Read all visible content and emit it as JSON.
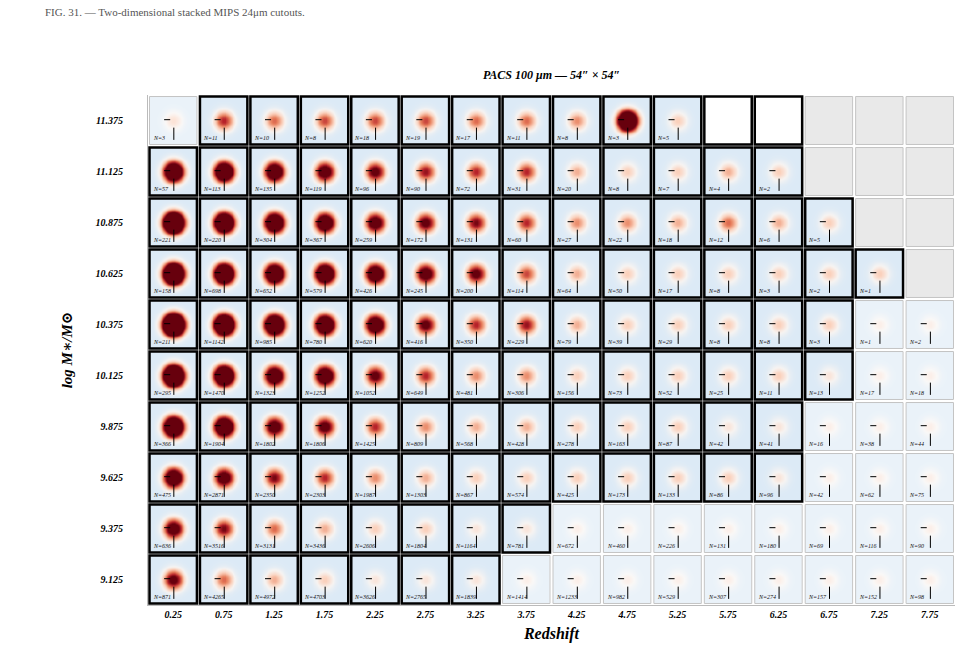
{
  "chart_data": {
    "type": "heatmap_grid",
    "title": "PACS 100 μm — 54″ × 54″",
    "caption": "FIG. 31. — Two-dimensional stacked MIPS 24μm cutouts.",
    "x_label": "Redshift",
    "y_label": "log M∗/M⊙",
    "xlim": [
      0,
      8
    ],
    "ylim": [
      9,
      11.5
    ],
    "xticks": [
      0.25,
      0.75,
      1.25,
      1.75,
      2.25,
      2.75,
      3.25,
      3.75,
      4.25,
      4.75,
      5.25,
      5.75,
      6.25,
      6.75,
      7.25,
      7.75
    ],
    "yticks": [
      9.125,
      9.375,
      9.625,
      9.875,
      10.125,
      10.375,
      10.625,
      10.875,
      11.125,
      11.375
    ],
    "color_range": [
      -0.6,
      1
    ],
    "rows": [
      {
        "mass": 11.375,
        "n": [
          3,
          11,
          10,
          8,
          18,
          19,
          17,
          11,
          8,
          3,
          5,
          null,
          null,
          null,
          null,
          null
        ],
        "value_labels": [
          "N=3",
          "N=11",
          "N=10",
          "N=8",
          "N=18",
          "N=19",
          "N=17",
          "N=11",
          "N=8",
          "N=3",
          "N=5",
          null,
          null,
          null,
          null,
          null
        ],
        "outlined": [
          false,
          true,
          true,
          true,
          true,
          true,
          true,
          true,
          true,
          true,
          true,
          true,
          true,
          false,
          false,
          false
        ],
        "peak": [
          0.3,
          0.8,
          0.6,
          0.7,
          0.7,
          0.7,
          0.6,
          0.6,
          0.5,
          3,
          0.3,
          null,
          null,
          null,
          null,
          null
        ]
      },
      {
        "mass": 11.125,
        "n": [
          57,
          113,
          135,
          119,
          96,
          90,
          72,
          31,
          20,
          8,
          7,
          4,
          2,
          null,
          null,
          null
        ],
        "value_labels": [
          "N=57",
          "N=113",
          "N=135",
          "N=119",
          "N=96",
          "N=90",
          "N=72",
          "N=31",
          "N=20",
          "N=8",
          "N=7",
          "N=4",
          "N=2",
          null,
          null,
          null
        ],
        "outlined": [
          true,
          true,
          true,
          true,
          true,
          true,
          true,
          true,
          true,
          true,
          true,
          true,
          true,
          false,
          false,
          false
        ],
        "peak": [
          2.5,
          2.5,
          2,
          1.5,
          1.2,
          0.9,
          0.8,
          0.8,
          0.4,
          0.3,
          0.3,
          0.4,
          0.3,
          null,
          null,
          null
        ]
      },
      {
        "mass": 10.875,
        "n": [
          221,
          220,
          304,
          367,
          259,
          172,
          131,
          60,
          27,
          22,
          18,
          12,
          6,
          5,
          null,
          null
        ],
        "value_labels": [
          "N=221",
          "N=220",
          "N=304",
          "N=367",
          "N=259",
          "N=172",
          "N=131",
          "N=60",
          "N=27",
          "N=22",
          "N=18",
          "N=12",
          "N=6",
          "N=5",
          null,
          null
        ],
        "outlined": [
          true,
          true,
          true,
          true,
          true,
          true,
          true,
          true,
          true,
          true,
          true,
          true,
          true,
          true,
          false,
          false
        ],
        "peak": [
          4,
          3,
          2.5,
          2,
          1.5,
          1.2,
          1,
          0.8,
          0.5,
          0.5,
          0.4,
          0.6,
          0.4,
          0.3,
          null,
          null
        ]
      },
      {
        "mass": 10.625,
        "n": [
          158,
          698,
          652,
          579,
          426,
          245,
          200,
          114,
          64,
          50,
          17,
          8,
          3,
          2,
          1,
          null
        ],
        "value_labels": [
          "N=158",
          "N=698",
          "N=652",
          "N=579",
          "N=426",
          "N=245",
          "N=200",
          "N=114",
          "N=64",
          "N=50",
          "N=17",
          "N=8",
          "N=3",
          "N=2",
          "N=1",
          null
        ],
        "outlined": [
          true,
          true,
          true,
          true,
          true,
          true,
          true,
          true,
          true,
          true,
          true,
          true,
          true,
          true,
          true,
          false
        ],
        "peak": [
          4,
          3,
          2.5,
          2.5,
          2,
          1.5,
          1.2,
          0.7,
          0.4,
          0.3,
          0.3,
          0.3,
          0.3,
          0.3,
          0.3,
          null
        ]
      },
      {
        "mass": 10.375,
        "n": [
          211,
          1142,
          985,
          780,
          620,
          416,
          350,
          229,
          79,
          39,
          29,
          8,
          8,
          3,
          1,
          2
        ],
        "value_labels": [
          "N=211",
          "N=1142",
          "N=985",
          "N=780",
          "N=620",
          "N=416",
          "N=350",
          "N=229",
          "N=79",
          "N=39",
          "N=29",
          "N=8",
          "N=8",
          "N=3",
          "N=1",
          "N=2"
        ],
        "outlined": [
          true,
          true,
          true,
          true,
          true,
          true,
          true,
          true,
          true,
          true,
          true,
          true,
          true,
          true,
          false,
          false
        ],
        "peak": [
          5,
          3.5,
          3,
          2.5,
          2,
          1.2,
          0.8,
          0.9,
          0.4,
          0.3,
          0.3,
          0.3,
          0.3,
          0.3,
          0.2,
          0.2
        ]
      },
      {
        "mass": 10.125,
        "n": [
          295,
          1470,
          1323,
          1252,
          1052,
          649,
          481,
          306,
          156,
          73,
          52,
          25,
          11,
          13,
          17,
          18
        ],
        "value_labels": [
          "N=295",
          "N=1470",
          "N=1323",
          "N=1252",
          "N=1052",
          "N=649",
          "N=481",
          "N=306",
          "N=156",
          "N=73",
          "N=52",
          "N=25",
          "N=11",
          "N=13",
          "N=17",
          "N=18"
        ],
        "outlined": [
          true,
          true,
          true,
          true,
          true,
          true,
          true,
          true,
          true,
          true,
          true,
          true,
          true,
          true,
          false,
          false
        ],
        "peak": [
          4,
          3,
          2,
          2,
          1.2,
          0.8,
          0.5,
          0.5,
          0.3,
          0.3,
          0.3,
          0.3,
          0.3,
          0.2,
          0.2,
          0.2
        ]
      },
      {
        "mass": 9.875,
        "n": [
          366,
          1904,
          1802,
          1806,
          1425,
          809,
          568,
          428,
          278,
          163,
          87,
          42,
          41,
          16,
          38,
          44
        ],
        "value_labels": [
          "N=366",
          "N=1904",
          "N=1802",
          "N=1806",
          "N=1425",
          "N=809",
          "N=568",
          "N=428",
          "N=278",
          "N=163",
          "N=87",
          "N=42",
          "N=41",
          "N=16",
          "N=38",
          "N=44"
        ],
        "outlined": [
          true,
          true,
          true,
          true,
          true,
          true,
          true,
          true,
          true,
          true,
          true,
          true,
          true,
          false,
          false,
          false
        ],
        "peak": [
          3,
          2.5,
          1.5,
          1.3,
          0.8,
          0.5,
          0.4,
          0.4,
          0.3,
          0.3,
          0.3,
          0.2,
          0.2,
          0.2,
          0.2,
          0.2
        ]
      },
      {
        "mass": 9.625,
        "n": [
          475,
          2871,
          2350,
          2303,
          1987,
          1303,
          867,
          574,
          425,
          173,
          133,
          86,
          96,
          42,
          62,
          75
        ],
        "value_labels": [
          "N=475",
          "N=2871",
          "N=2350",
          "N=2303",
          "N=1987",
          "N=1303",
          "N=867",
          "N=574",
          "N=425",
          "N=173",
          "N=133",
          "N=86",
          "N=96",
          "N=42",
          "N=62",
          "N=75"
        ],
        "outlined": [
          true,
          true,
          true,
          true,
          true,
          true,
          true,
          true,
          true,
          true,
          true,
          true,
          true,
          false,
          false,
          false
        ],
        "peak": [
          2,
          1.5,
          1,
          0.8,
          0.5,
          0.4,
          0.3,
          0.3,
          0.3,
          0.3,
          0.3,
          0.3,
          0.2,
          0.2,
          0.2,
          0.2
        ]
      },
      {
        "mass": 9.375,
        "n": [
          636,
          3516,
          3131,
          3436,
          2606,
          1804,
          1164,
          781,
          672,
          460,
          226,
          131,
          180,
          69,
          116,
          90
        ],
        "value_labels": [
          "N=636",
          "N=3516",
          "N=3131",
          "N=3436",
          "N=2606",
          "N=1804",
          "N=1164",
          "N=781",
          "N=672",
          "N=460",
          "N=226",
          "N=131",
          "N=180",
          "N=69",
          "N=116",
          "N=90"
        ],
        "outlined": [
          true,
          true,
          true,
          true,
          true,
          true,
          true,
          true,
          false,
          false,
          false,
          false,
          false,
          false,
          false,
          false
        ],
        "peak": [
          1.5,
          1,
          0.6,
          0.4,
          0.3,
          0.3,
          0.2,
          0.2,
          0.2,
          0.2,
          0.2,
          0.2,
          0.2,
          0.2,
          0.2,
          0.2
        ]
      },
      {
        "mass": 9.125,
        "n": [
          871,
          4265,
          4972,
          4703,
          3626,
          2765,
          1839,
          1414,
          1233,
          982,
          529,
          307,
          274,
          157,
          152,
          98
        ],
        "value_labels": [
          "N=871",
          "N=4265",
          "N=4972",
          "N=4703",
          "N=3626",
          "N=2765",
          "N=1839",
          "N=1414",
          "N=1233",
          "N=982",
          "N=529",
          "N=307",
          "N=274",
          "N=157",
          "N=152",
          "N=98"
        ],
        "outlined": [
          true,
          true,
          true,
          true,
          true,
          true,
          true,
          false,
          false,
          false,
          false,
          false,
          false,
          false,
          false,
          false
        ],
        "peak": [
          1.2,
          0.6,
          0.4,
          0.3,
          0.2,
          0.2,
          0.2,
          0.2,
          0.2,
          0.2,
          0.2,
          0.2,
          0.2,
          0.2,
          0.2,
          0.2
        ]
      }
    ]
  }
}
